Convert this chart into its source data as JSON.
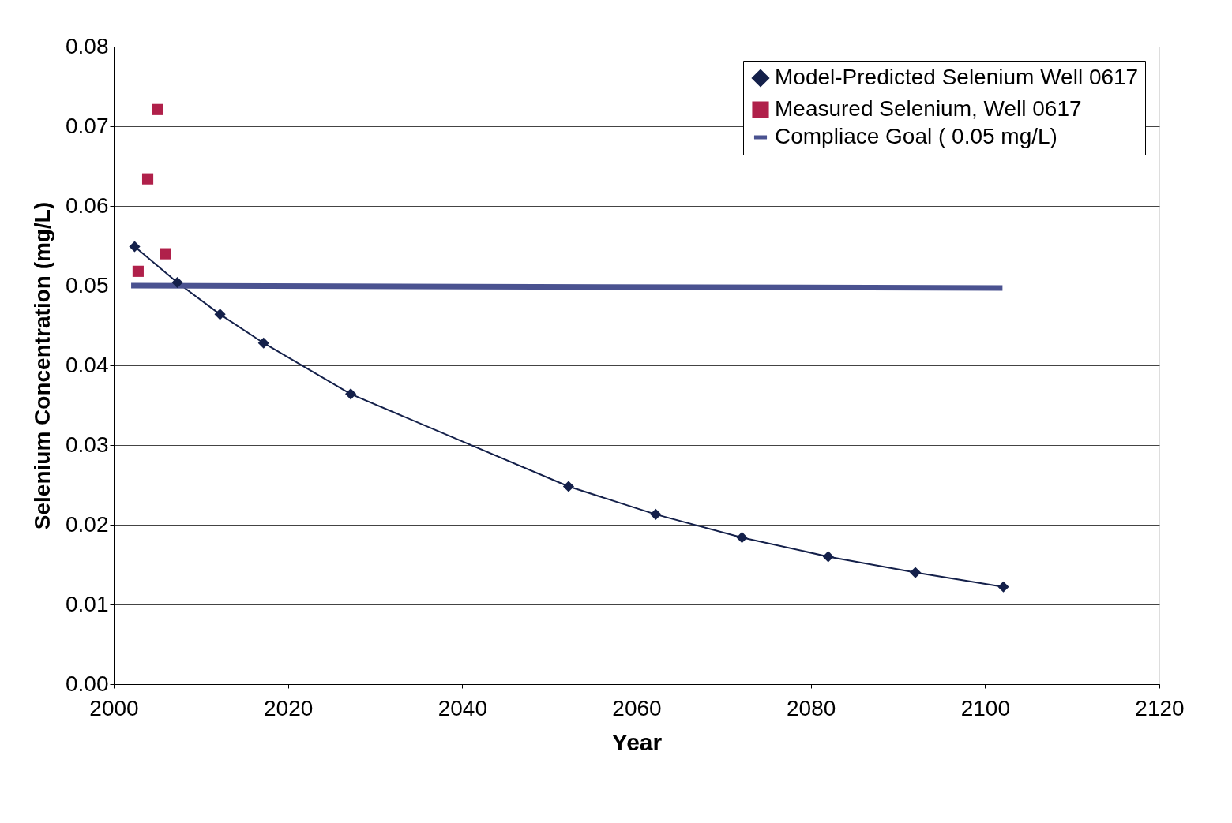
{
  "chart_data": {
    "type": "line",
    "xlabel": "Year",
    "ylabel": "Selenium Concentration (mg/L)",
    "xlim": [
      2000,
      2120
    ],
    "xticks": [
      2000,
      2020,
      2040,
      2060,
      2080,
      2100,
      2120
    ],
    "ylim": [
      0,
      0.08
    ],
    "yticks": [
      {
        "value": 0,
        "label": "0.00"
      },
      {
        "value": 0.01,
        "label": "0.01"
      },
      {
        "value": 0.02,
        "label": "0.02"
      },
      {
        "value": 0.03,
        "label": "0.03"
      },
      {
        "value": 0.04,
        "label": "0.04"
      },
      {
        "value": 0.05,
        "label": "0.05"
      },
      {
        "value": 0.06,
        "label": "0.06"
      },
      {
        "value": 0.07,
        "label": "0.07"
      },
      {
        "value": 0.08,
        "label": "0.08"
      }
    ],
    "grid": "y",
    "legend": "top right",
    "series": [
      {
        "name": "Model-Predicted Selenium Well 0617",
        "marker": "diamond",
        "color": "#14204a",
        "x": [
          2002.4,
          2007.3,
          2012.2,
          2017.2,
          2027.2,
          2052.2,
          2062.2,
          2072.1,
          2082.0,
          2092.0,
          2102.1
        ],
        "values": [
          0.0549,
          0.0504,
          0.0464,
          0.0428,
          0.0364,
          0.0248,
          0.0213,
          0.0184,
          0.016,
          0.014,
          0.0122
        ]
      },
      {
        "name": "Measured Selenium, Well 0617",
        "type": "scatter",
        "marker": "square",
        "color": "#b0204a",
        "x": [
          2002.8,
          2003.9,
          2005.0,
          2005.9
        ],
        "values": [
          0.0518,
          0.0634,
          0.0721,
          0.054
        ]
      },
      {
        "name": "Compliace Goal ( 0.05 mg/L)",
        "marker": "none",
        "color": "#4a5290",
        "x": [
          2002,
          2102
        ],
        "values": [
          0.05,
          0.0497
        ]
      }
    ]
  }
}
